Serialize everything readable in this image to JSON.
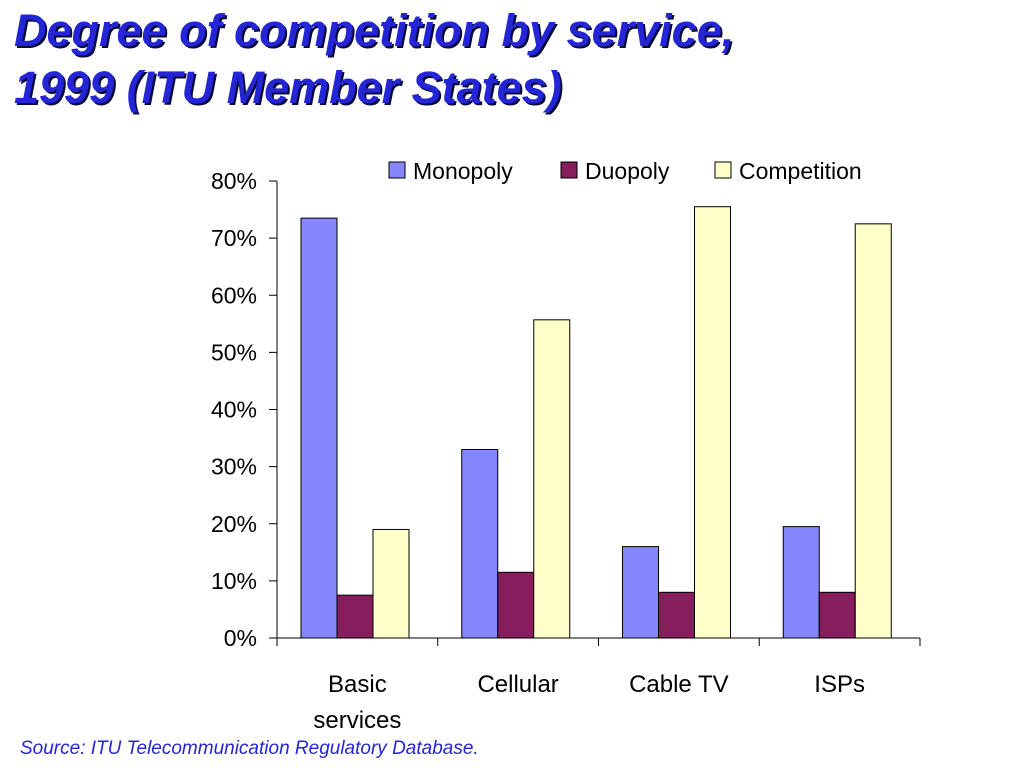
{
  "slide": {
    "title_line1": "Degree of competition by service,",
    "title_line2": "1999 (ITU Member States)",
    "source": "Source: ITU Telecommunication Regulatory Database."
  },
  "colors": {
    "title": "#2525d8",
    "source": "#2525d8",
    "monopoly": "#8686fc",
    "duopoly": "#861d5d",
    "competition": "#ffffca"
  },
  "chart_data": {
    "type": "bar",
    "categories": [
      [
        "Basic",
        "services"
      ],
      [
        "Cellular"
      ],
      [
        "Cable TV"
      ],
      [
        "ISPs"
      ]
    ],
    "series": [
      {
        "name": "Monopoly",
        "color": "#8686fc",
        "values": [
          73.5,
          33,
          16,
          19.5
        ]
      },
      {
        "name": "Duopoly",
        "color": "#861d5d",
        "values": [
          7.5,
          11.5,
          8,
          8
        ]
      },
      {
        "name": "Competition",
        "color": "#ffffca",
        "values": [
          19,
          55.7,
          75.5,
          72.5
        ]
      }
    ],
    "yticks": [
      "0%",
      "10%",
      "20%",
      "30%",
      "40%",
      "50%",
      "60%",
      "70%",
      "80%"
    ],
    "ylim": [
      0,
      80
    ],
    "grid": false,
    "legend_position": "top-right"
  }
}
